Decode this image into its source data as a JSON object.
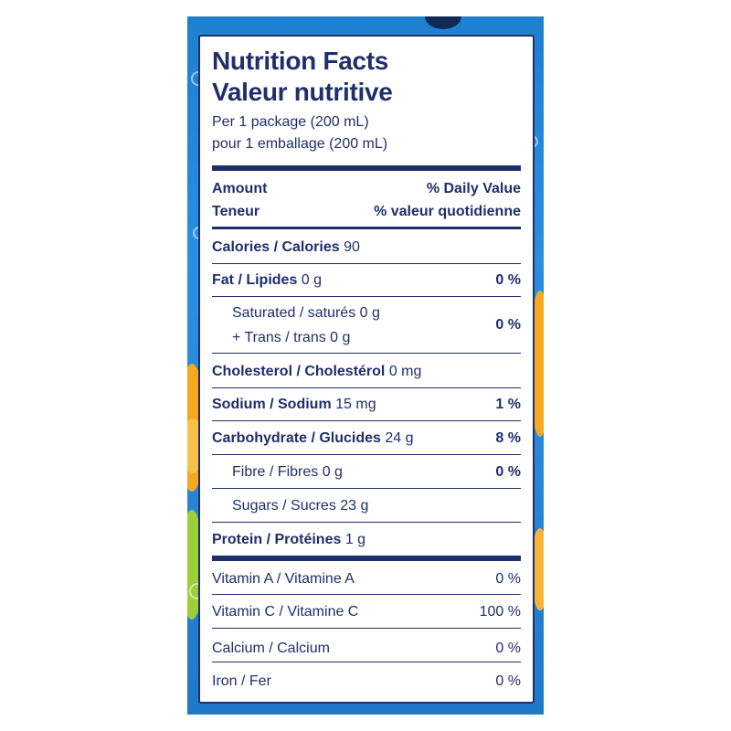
{
  "header": {
    "title_en": "Nutrition Facts",
    "title_fr": "Valeur nutritive",
    "serving_en": "Per 1 package (200 mL)",
    "serving_fr": "pour 1 emballage (200 mL)"
  },
  "column_headers": {
    "amount_en": "Amount",
    "amount_fr": "Teneur",
    "dv_en": "% Daily Value",
    "dv_fr": "% valeur quotidienne"
  },
  "calories": {
    "label": "Calories / Calories",
    "value": "90"
  },
  "nutrients": {
    "fat": {
      "label": "Fat / Lipides",
      "amount": "0 g",
      "dv": "0 %"
    },
    "saturated": {
      "label": "Saturated / saturés",
      "amount": "0 g"
    },
    "trans": {
      "label": "+ Trans / trans",
      "amount": "0 g"
    },
    "sat_trans_dv": "0 %",
    "cholesterol": {
      "label": "Cholesterol / Cholestérol",
      "amount": "0 mg"
    },
    "sodium": {
      "label": "Sodium / Sodium",
      "amount": "15 mg",
      "dv": "1 %"
    },
    "carbohydrate": {
      "label": "Carbohydrate / Glucides",
      "amount": "24 g",
      "dv": "8 %"
    },
    "fibre": {
      "label": "Fibre / Fibres",
      "amount": "0 g",
      "dv": "0 %"
    },
    "sugars": {
      "label": "Sugars / Sucres",
      "amount": "23 g"
    },
    "protein": {
      "label": "Protein / Protéines",
      "amount": "1 g"
    }
  },
  "vitamins": {
    "vitamin_a": {
      "label": "Vitamin A / Vitamine A",
      "dv": "0 %"
    },
    "vitamin_c": {
      "label": "Vitamin C / Vitamine C",
      "dv": "100 %"
    },
    "calcium": {
      "label": "Calcium / Calcium",
      "dv": "0 %"
    },
    "iron": {
      "label": "Iron / Fer",
      "dv": "0 %"
    }
  },
  "colors": {
    "label_ink": "#1f2f6b",
    "package_blue": "#2a8fe0",
    "accent_orange": "#f6a91f",
    "accent_green": "#9ccf3a"
  }
}
